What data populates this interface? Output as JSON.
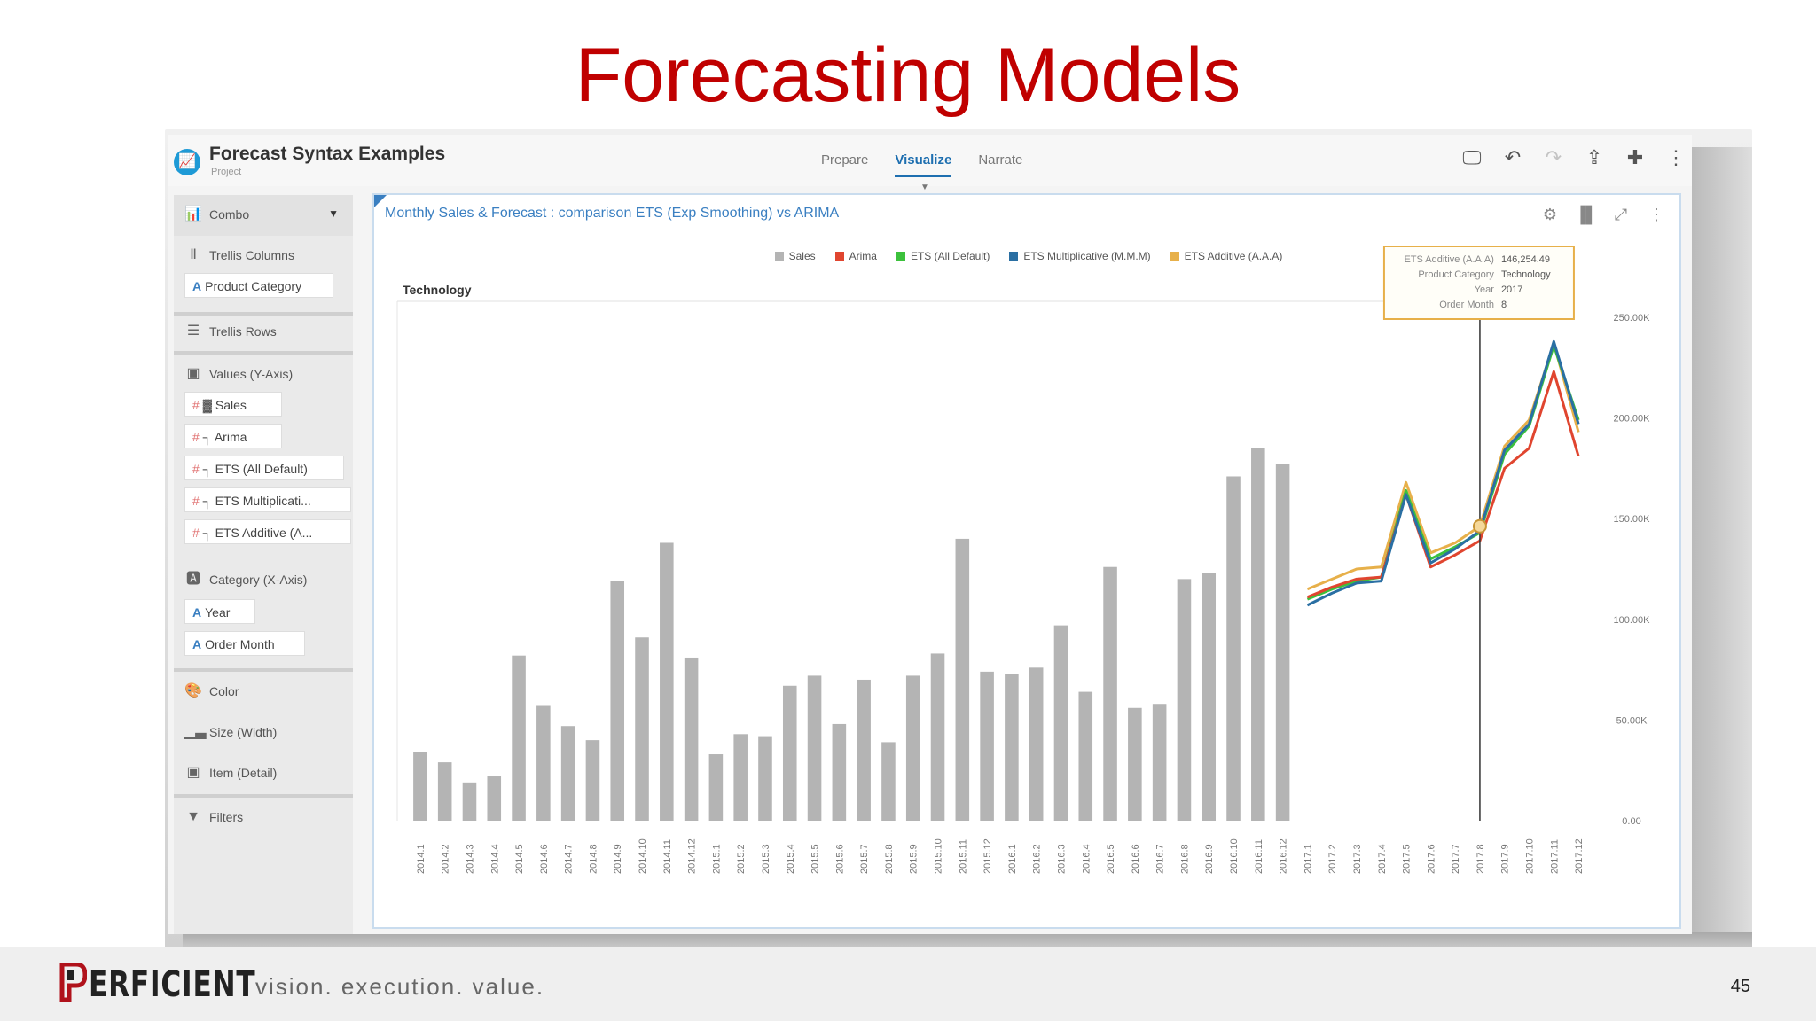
{
  "slide": {
    "title": "Forecasting Models",
    "page_number": "45",
    "brand": "ERFICIENT",
    "tagline": "vision.  execution.  value."
  },
  "app": {
    "title": "Forecast Syntax Examples",
    "subtitle": "Project",
    "tabs": [
      {
        "label": "Prepare",
        "active": false
      },
      {
        "label": "Visualize",
        "active": true
      },
      {
        "label": "Narrate",
        "active": false
      }
    ],
    "toolbar_icons": [
      "present-icon",
      "undo-icon",
      "redo-icon",
      "share-icon",
      "add-data-icon",
      "more-icon"
    ]
  },
  "left_panel": {
    "combo": "Combo",
    "trellis_columns": "Trellis Columns",
    "trellis_columns_item": "Product Category",
    "trellis_rows": "Trellis Rows",
    "values": "Values (Y-Axis)",
    "value_items": [
      "Sales",
      "Arima",
      "ETS (All Default)",
      "ETS Multiplicati...",
      "ETS Additive (A..."
    ],
    "category": "Category (X-Axis)",
    "category_items": [
      "Year",
      "Order Month"
    ],
    "color": "Color",
    "size": "Size (Width)",
    "item": "Item (Detail)",
    "filters": "Filters"
  },
  "canvas": {
    "chart_title": "Monthly Sales & Forecast : comparison ETS (Exp Smoothing) vs ARIMA",
    "trellis_label": "Technology",
    "tooltip": {
      "rows": [
        {
          "k": "ETS Additive (A.A.A)",
          "v": "146,254.49"
        },
        {
          "k": "Product Category",
          "v": "Technology"
        },
        {
          "k": "Year",
          "v": "2017"
        },
        {
          "k": "Order Month",
          "v": "8"
        }
      ]
    }
  },
  "colors": {
    "sales": "#b4b4b4",
    "arima": "#e0452f",
    "ets_default": "#3cc13c",
    "ets_mult": "#2a6fa3",
    "ets_add": "#e7b04a",
    "accent": "#1e6fb0",
    "title_red": "#c00000"
  },
  "chart_data": {
    "type": "bar",
    "categories": [
      "2014.1",
      "2014.2",
      "2014.3",
      "2014.4",
      "2014.5",
      "2014.6",
      "2014.7",
      "2014.8",
      "2014.9",
      "2014.10",
      "2014.11",
      "2014.12",
      "2015.1",
      "2015.2",
      "2015.3",
      "2015.4",
      "2015.5",
      "2015.6",
      "2015.7",
      "2015.8",
      "2015.9",
      "2015.10",
      "2015.11",
      "2015.12",
      "2016.1",
      "2016.2",
      "2016.3",
      "2016.4",
      "2016.5",
      "2016.6",
      "2016.7",
      "2016.8",
      "2016.9",
      "2016.10",
      "2016.11",
      "2016.12",
      "2017.1",
      "2017.2",
      "2017.3",
      "2017.4",
      "2017.5",
      "2017.6",
      "2017.7",
      "2017.8",
      "2017.9",
      "2017.10",
      "2017.11",
      "2017.12"
    ],
    "ylim": [
      0,
      250000
    ],
    "yticks": [
      "0.00",
      "50.00K",
      "100.00K",
      "150.00K",
      "200.00K",
      "250.00K"
    ],
    "series": [
      {
        "name": "Sales",
        "kind": "bar",
        "values": [
          34000,
          29000,
          19000,
          22000,
          82000,
          57000,
          47000,
          40000,
          119000,
          91000,
          138000,
          81000,
          33000,
          43000,
          42000,
          67000,
          72000,
          48000,
          70000,
          39000,
          72000,
          83000,
          140000,
          74000,
          73000,
          76000,
          97000,
          64000,
          126000,
          56000,
          58000,
          120000,
          123000,
          171000,
          185000,
          177000,
          null,
          null,
          null,
          null,
          null,
          null,
          null,
          null,
          null,
          null,
          null,
          null
        ]
      },
      {
        "name": "Arima",
        "kind": "line",
        "values": [
          null,
          null,
          null,
          null,
          null,
          null,
          null,
          null,
          null,
          null,
          null,
          null,
          null,
          null,
          null,
          null,
          null,
          null,
          null,
          null,
          null,
          null,
          null,
          null,
          null,
          null,
          null,
          null,
          null,
          null,
          null,
          null,
          null,
          null,
          null,
          null,
          111000,
          116000,
          120000,
          121000,
          162000,
          126000,
          132000,
          139000,
          175000,
          185000,
          223000,
          181000
        ]
      },
      {
        "name": "ETS (All Default)",
        "kind": "line",
        "values": [
          null,
          null,
          null,
          null,
          null,
          null,
          null,
          null,
          null,
          null,
          null,
          null,
          null,
          null,
          null,
          null,
          null,
          null,
          null,
          null,
          null,
          null,
          null,
          null,
          null,
          null,
          null,
          null,
          null,
          null,
          null,
          null,
          null,
          null,
          null,
          null,
          110000,
          115000,
          119000,
          121000,
          164000,
          130000,
          136000,
          143000,
          182000,
          196000,
          236000,
          199000
        ]
      },
      {
        "name": "ETS Multiplicative (M.M.M)",
        "kind": "line",
        "values": [
          null,
          null,
          null,
          null,
          null,
          null,
          null,
          null,
          null,
          null,
          null,
          null,
          null,
          null,
          null,
          null,
          null,
          null,
          null,
          null,
          null,
          null,
          null,
          null,
          null,
          null,
          null,
          null,
          null,
          null,
          null,
          null,
          null,
          null,
          null,
          null,
          107000,
          113000,
          118000,
          119000,
          162000,
          128000,
          135000,
          144000,
          184000,
          197000,
          238000,
          197000
        ]
      },
      {
        "name": "ETS Additive (A.A.A)",
        "kind": "line",
        "values": [
          null,
          null,
          null,
          null,
          null,
          null,
          null,
          null,
          null,
          null,
          null,
          null,
          null,
          null,
          null,
          null,
          null,
          null,
          null,
          null,
          null,
          null,
          null,
          null,
          null,
          null,
          null,
          null,
          null,
          null,
          null,
          null,
          null,
          null,
          null,
          null,
          115000,
          120000,
          125000,
          126000,
          168000,
          133000,
          138000,
          146254,
          186000,
          199000,
          237000,
          193000
        ]
      }
    ]
  }
}
